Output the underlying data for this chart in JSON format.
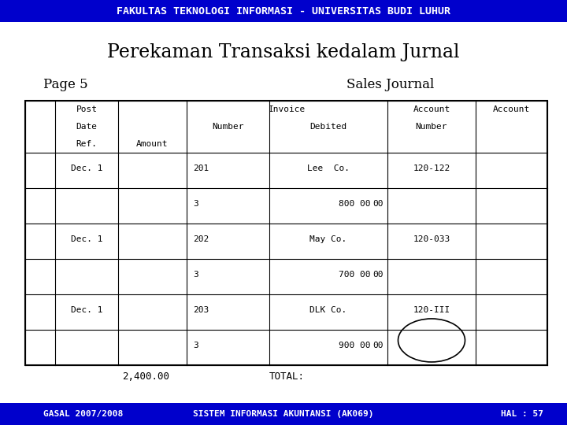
{
  "header_text": "FAKULTAS TEKNOLOGI INFORMASI - UNIVERSITAS BUDI LUHUR",
  "header_bg": "#0000cc",
  "header_fg": "#ffffff",
  "title": "Perekaman Transaksi kedalam Jurnal",
  "page_label": "Page 5",
  "journal_label": "Sales Journal",
  "footer_bg": "#0000cc",
  "footer_fg": "#ffffff",
  "footer_left": "GASAL 2007/2008",
  "footer_mid": "SISTEM INFORMASI AKUNTANSI (AK069)",
  "footer_right": "HAL : 57",
  "total_label": "TOTAL:",
  "total_value": "2,400.00",
  "rows": [
    {
      "date": "Dec. 1",
      "inv_num": "201",
      "inv_ref": "3",
      "debited_name": "Lee  Co.",
      "debited_amt": "800 00",
      "acc_num": "120-122"
    },
    {
      "date": "Dec. 1",
      "inv_num": "202",
      "inv_ref": "3",
      "debited_name": "May Co.",
      "debited_amt": "700 00",
      "acc_num": "120-033"
    },
    {
      "date": "Dec. 1",
      "inv_num": "203",
      "inv_ref": "3",
      "debited_name": "DLK Co.",
      "debited_amt": "900 00",
      "acc_num": "120-III"
    }
  ],
  "watermark_light": "#c8e6f5",
  "watermark_mid": "#a8d4ee"
}
